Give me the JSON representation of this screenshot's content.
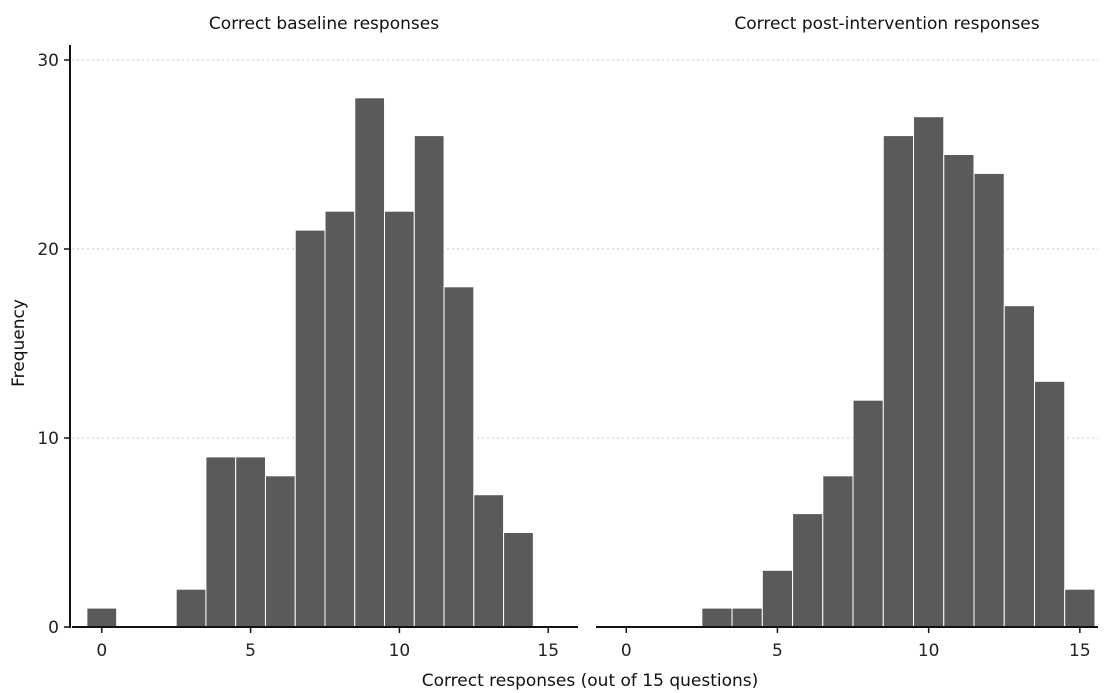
{
  "chart_data": {
    "type": "bar",
    "xlabel": "Correct responses (out of 15 questions)",
    "ylabel": "Frequency",
    "ylim": [
      0,
      30
    ],
    "yticks": [
      0,
      10,
      20,
      30
    ],
    "xticks": [
      0,
      5,
      10,
      15
    ],
    "grid": "horizontal dotted",
    "panels": [
      {
        "title": "Correct baseline responses",
        "xlim": [
          -1,
          16
        ],
        "categories": [
          0,
          1,
          2,
          3,
          4,
          5,
          6,
          7,
          8,
          9,
          10,
          11,
          12,
          13,
          14,
          15
        ],
        "values": [
          1,
          0,
          0,
          2,
          9,
          9,
          8,
          21,
          22,
          28,
          22,
          26,
          18,
          7,
          5,
          0
        ]
      },
      {
        "title": "Correct post-intervention responses",
        "xlim": [
          -1,
          15.6
        ],
        "categories": [
          0,
          1,
          2,
          3,
          4,
          5,
          6,
          7,
          8,
          9,
          10,
          11,
          12,
          13,
          14,
          15
        ],
        "values": [
          0,
          0,
          0,
          1,
          1,
          3,
          6,
          8,
          12,
          26,
          27,
          25,
          24,
          17,
          13,
          2
        ]
      }
    ]
  }
}
